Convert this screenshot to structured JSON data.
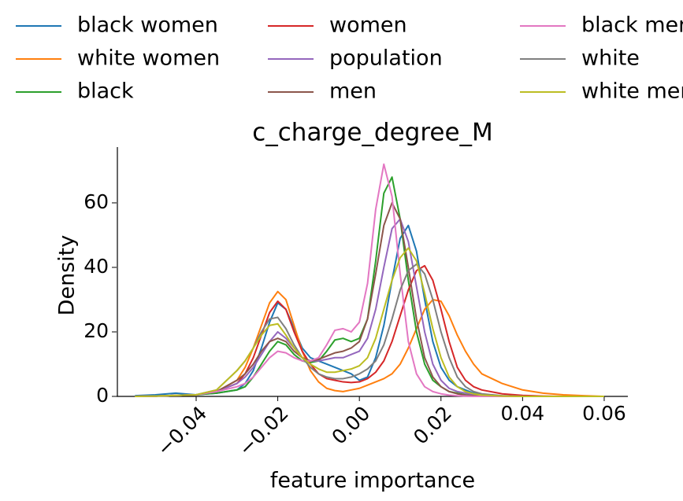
{
  "chart_data": {
    "type": "line",
    "title": "c_charge_degree_M",
    "xlabel": "feature importance",
    "ylabel": "Density",
    "x": [
      -0.055,
      -0.05,
      -0.045,
      -0.04,
      -0.035,
      -0.03,
      -0.028,
      -0.026,
      -0.024,
      -0.022,
      -0.02,
      -0.018,
      -0.016,
      -0.014,
      -0.012,
      -0.01,
      -0.008,
      -0.006,
      -0.004,
      -0.002,
      0,
      0.002,
      0.004,
      0.006,
      0.008,
      0.01,
      0.012,
      0.014,
      0.016,
      0.018,
      0.02,
      0.022,
      0.024,
      0.026,
      0.028,
      0.03,
      0.035,
      0.04,
      0.045,
      0.05,
      0.055,
      0.06
    ],
    "series": [
      {
        "name": "black women",
        "color": "#1f77b4",
        "values": [
          0.2,
          0.5,
          1,
          0.5,
          1,
          2,
          4,
          8,
          15,
          23,
          29,
          27,
          21,
          15,
          12,
          11,
          10,
          9,
          8,
          7,
          5,
          6,
          12,
          22,
          36,
          49,
          53,
          45,
          30,
          17,
          9,
          5,
          3,
          2,
          1,
          0.5,
          0.1,
          0,
          0,
          0,
          0,
          0
        ]
      },
      {
        "name": "white women",
        "color": "#ff7f0e",
        "values": [
          0,
          0.1,
          0.3,
          0.5,
          1.5,
          5,
          9,
          15,
          22,
          29,
          32.5,
          30,
          22,
          14,
          8,
          4.5,
          2.5,
          1.8,
          1.5,
          2,
          2.5,
          3.5,
          4.5,
          5.5,
          7,
          10,
          15,
          21,
          27,
          30,
          29.5,
          25,
          19,
          14,
          10,
          7,
          4,
          2,
          1,
          0.5,
          0.2,
          0
        ]
      },
      {
        "name": "black",
        "color": "#2ca02c",
        "values": [
          0,
          0.1,
          0.3,
          0.5,
          1,
          2,
          3,
          6,
          10,
          14,
          17,
          16,
          13,
          11,
          10.5,
          11,
          14,
          17.5,
          18,
          17,
          18,
          24,
          42,
          63,
          68,
          55,
          36,
          20,
          10,
          5,
          3,
          1.5,
          1,
          0.5,
          0.3,
          0.1,
          0,
          0,
          0,
          0,
          0,
          0
        ]
      },
      {
        "name": "women",
        "color": "#d62728",
        "values": [
          0,
          0.1,
          0.3,
          0.5,
          1.5,
          4,
          7,
          12,
          19,
          26,
          29.5,
          27,
          20,
          14,
          10,
          7,
          5.5,
          5,
          4.5,
          4.3,
          4.5,
          5.5,
          7.5,
          11,
          17,
          25,
          33,
          39,
          40.5,
          36,
          27,
          17,
          9,
          5,
          3,
          2,
          0.8,
          0.3,
          0.1,
          0,
          0,
          0
        ]
      },
      {
        "name": "population",
        "color": "#9467bd",
        "values": [
          0,
          0.1,
          0.3,
          0.5,
          1.5,
          4,
          6,
          9,
          13,
          17,
          20,
          18,
          15,
          12,
          11,
          11,
          11.5,
          12,
          12,
          13,
          14,
          18,
          27,
          40,
          52,
          55,
          48,
          34,
          20,
          10,
          5,
          2.5,
          1.5,
          1,
          0.5,
          0.3,
          0.1,
          0,
          0,
          0,
          0,
          0
        ]
      },
      {
        "name": "men",
        "color": "#8c564b",
        "values": [
          0,
          0.1,
          0.3,
          0.5,
          1.5,
          5,
          7,
          10,
          14,
          17,
          18,
          17,
          14,
          12,
          11,
          11.5,
          12.5,
          13.5,
          14,
          15,
          17,
          24,
          38,
          53,
          60,
          55,
          40,
          24,
          12,
          6,
          3,
          1.5,
          0.8,
          0.4,
          0.2,
          0.1,
          0,
          0,
          0,
          0,
          0,
          0
        ]
      },
      {
        "name": "black men",
        "color": "#e377c2",
        "values": [
          0,
          0.1,
          0.3,
          0.5,
          1.5,
          3,
          4,
          6,
          9,
          12,
          14,
          13.5,
          12,
          11,
          11,
          12,
          16,
          20.5,
          21,
          20,
          23,
          35,
          58,
          72,
          62,
          38,
          17,
          7,
          3,
          1.5,
          0.8,
          0.4,
          0.2,
          0.1,
          0,
          0,
          0,
          0,
          0,
          0,
          0,
          0
        ]
      },
      {
        "name": "white",
        "color": "#7f7f7f",
        "values": [
          0,
          0.1,
          0.3,
          0.5,
          2,
          8,
          11,
          15,
          20,
          24,
          24.5,
          21,
          16,
          12,
          9,
          7,
          6,
          5.5,
          5.5,
          6,
          7,
          8.5,
          11,
          16,
          24,
          33,
          39,
          41,
          38,
          30,
          20,
          12,
          6,
          3,
          1.5,
          0.8,
          0.2,
          0,
          0,
          0,
          0,
          0
        ]
      },
      {
        "name": "white men",
        "color": "#bcbd22",
        "values": [
          0,
          0.1,
          0.3,
          0.5,
          2,
          8,
          11,
          15,
          19,
          22,
          22.5,
          19,
          15,
          12,
          10,
          8.5,
          7.5,
          7.5,
          8,
          8.5,
          9.5,
          12,
          18,
          27,
          36,
          43,
          46,
          42,
          32,
          21,
          12,
          6,
          3,
          1.5,
          0.8,
          0.4,
          0.1,
          0,
          0,
          0,
          0,
          0
        ]
      }
    ],
    "xlim": [
      -0.0595,
      0.0658
    ],
    "ylim": [
      0,
      77.3
    ],
    "xticks": [
      {
        "value": -0.04,
        "label": "−0.04"
      },
      {
        "value": -0.02,
        "label": "−0.02"
      },
      {
        "value": 0,
        "label": "0.00"
      },
      0.02,
      0.04,
      0.06
    ],
    "yticks": [
      0,
      20,
      40,
      60
    ],
    "grid": false,
    "legend": "top"
  }
}
